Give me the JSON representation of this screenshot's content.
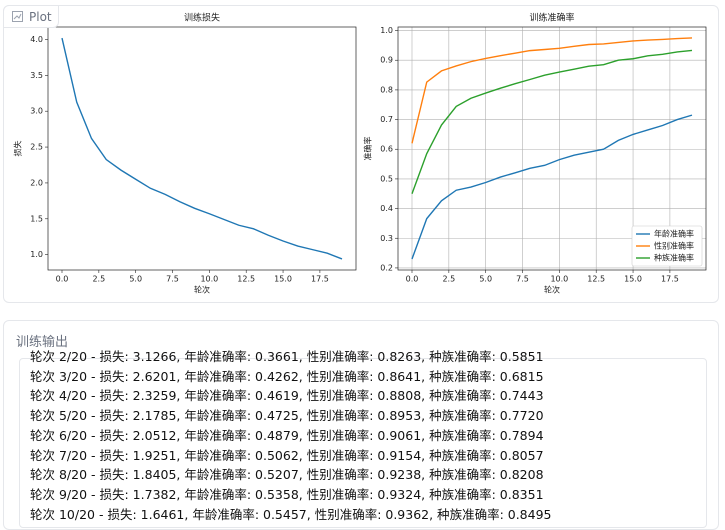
{
  "header": {
    "label": "Plot"
  },
  "chart_data": [
    {
      "type": "line",
      "title": "训练损失",
      "xlabel": "轮次",
      "ylabel": "损失",
      "x": [
        0,
        1,
        2,
        3,
        4,
        5,
        6,
        7,
        8,
        9,
        10,
        11,
        12,
        13,
        14,
        15,
        16,
        17,
        18,
        19
      ],
      "values": [
        4.02,
        3.1266,
        2.6201,
        2.3259,
        2.1785,
        2.0512,
        1.9251,
        1.8405,
        1.7382,
        1.6461,
        1.57,
        1.49,
        1.41,
        1.36,
        1.27,
        1.19,
        1.12,
        1.07,
        1.02,
        0.94
      ],
      "color": "#1f77b4",
      "xlim": [
        -0.95,
        19.95
      ],
      "ylim": [
        0.786,
        4.174
      ],
      "xticks": [
        {
          "value": 0,
          "label": "0.0"
        },
        2.5,
        {
          "value": 5,
          "label": "5.0"
        },
        7.5,
        {
          "value": 10,
          "label": "10.0"
        },
        12.5,
        {
          "value": 15,
          "label": "15.0"
        },
        17.5
      ],
      "yticks": [
        {
          "value": 1,
          "label": "1.0"
        },
        1.5,
        {
          "value": 2,
          "label": "2.0"
        },
        2.5,
        {
          "value": 3,
          "label": "3.0"
        },
        3.5,
        {
          "value": 4,
          "label": "4.0"
        }
      ],
      "grid": false
    },
    {
      "type": "line",
      "title": "训练准确率",
      "xlabel": "轮次",
      "ylabel": "准确率",
      "x": [
        0,
        1,
        2,
        3,
        4,
        5,
        6,
        7,
        8,
        9,
        10,
        11,
        12,
        13,
        14,
        15,
        16,
        17,
        18,
        19
      ],
      "series": [
        {
          "name": "年龄准确率",
          "color": "#1f77b4",
          "values": [
            0.23,
            0.3661,
            0.4262,
            0.4619,
            0.4725,
            0.4879,
            0.5062,
            0.5207,
            0.5358,
            0.5457,
            0.565,
            0.58,
            0.59,
            0.6,
            0.63,
            0.65,
            0.665,
            0.68,
            0.7,
            0.715
          ]
        },
        {
          "name": "性别准确率",
          "color": "#ff7f0e",
          "values": [
            0.62,
            0.8263,
            0.8641,
            0.8808,
            0.8953,
            0.9061,
            0.9154,
            0.9238,
            0.9324,
            0.9362,
            0.94,
            0.947,
            0.953,
            0.955,
            0.96,
            0.965,
            0.968,
            0.97,
            0.973,
            0.975
          ]
        },
        {
          "name": "种族准确率",
          "color": "#2ca02c",
          "values": [
            0.45,
            0.5851,
            0.6815,
            0.7443,
            0.772,
            0.7894,
            0.8057,
            0.8208,
            0.8351,
            0.8495,
            0.86,
            0.87,
            0.88,
            0.885,
            0.9,
            0.905,
            0.915,
            0.92,
            0.928,
            0.933
          ]
        }
      ],
      "xlim": [
        -0.95,
        19.95
      ],
      "ylim": [
        0.193,
        1.012
      ],
      "xticks": [
        {
          "value": 0,
          "label": "0.0"
        },
        2.5,
        {
          "value": 5,
          "label": "5.0"
        },
        7.5,
        {
          "value": 10,
          "label": "10.0"
        },
        12.5,
        {
          "value": 15,
          "label": "15.0"
        },
        17.5
      ],
      "yticks": [
        0.2,
        0.3,
        0.4,
        0.5,
        0.6,
        0.7,
        0.8,
        0.9,
        {
          "value": 1,
          "label": "1.0"
        }
      ],
      "grid": true,
      "legend": "lower right"
    }
  ],
  "log": {
    "label": "训练输出",
    "lines": [
      "轮次 2/20 - 损失: 3.1266, 年龄准确率: 0.3661, 性别准确率: 0.8263, 种族准确率: 0.5851",
      "轮次 3/20 - 损失: 2.6201, 年龄准确率: 0.4262, 性别准确率: 0.8641, 种族准确率: 0.6815",
      "轮次 4/20 - 损失: 2.3259, 年龄准确率: 0.4619, 性别准确率: 0.8808, 种族准确率: 0.7443",
      "轮次 5/20 - 损失: 2.1785, 年龄准确率: 0.4725, 性别准确率: 0.8953, 种族准确率: 0.7720",
      "轮次 6/20 - 损失: 2.0512, 年龄准确率: 0.4879, 性别准确率: 0.9061, 种族准确率: 0.7894",
      "轮次 7/20 - 损失: 1.9251, 年龄准确率: 0.5062, 性别准确率: 0.9154, 种族准确率: 0.8057",
      "轮次 8/20 - 损失: 1.8405, 年龄准确率: 0.5207, 性别准确率: 0.9238, 种族准确率: 0.8208",
      "轮次 9/20 - 损失: 1.7382, 年龄准确率: 0.5358, 性别准确率: 0.9324, 种族准确率: 0.8351",
      "轮次 10/20 - 损失: 1.6461, 年龄准确率: 0.5457, 性别准确率: 0.9362, 种族准确率: 0.8495"
    ]
  }
}
